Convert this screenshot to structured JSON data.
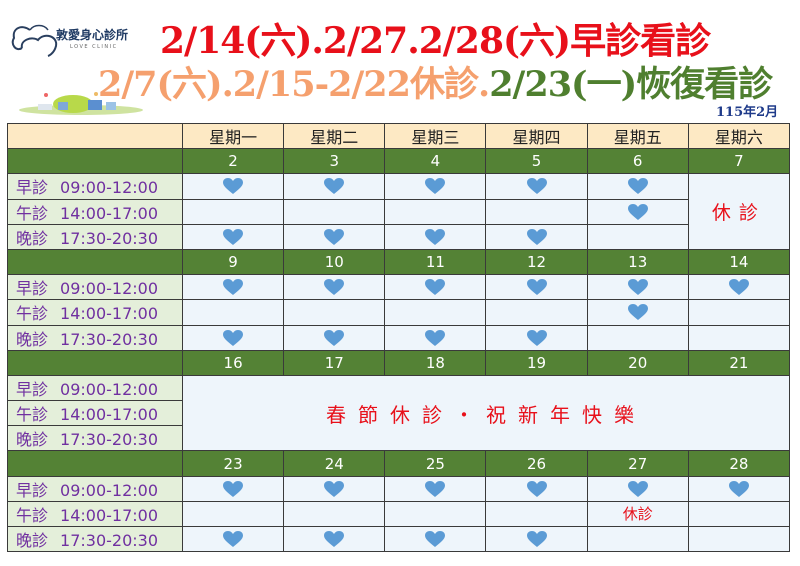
{
  "logo": {
    "name": "敦愛身心診所",
    "subtitle": "LOVE CLINIC"
  },
  "title_line1": "2/14(六).2/27.2/28(六)早診看診",
  "title_line2": {
    "closed": "2/7(六).2/15-2/22休診.",
    "resume": "2/23(一)恢復看診"
  },
  "year_month": "115年2月",
  "colors": {
    "title_red": "#e8101a",
    "title_orange": "#f5a06e",
    "title_green": "#4f7f2f",
    "week_bar": "#548235",
    "header_bg": "#fde9c4",
    "label_text": "#7030a0",
    "heart": "#5b9bd5",
    "cell_bg": "#eef5fb"
  },
  "weekdays": [
    "星期一",
    "星期二",
    "星期三",
    "星期四",
    "星期五",
    "星期六"
  ],
  "sessions": [
    {
      "name": "早診",
      "time": "09:00-12:00"
    },
    {
      "name": "午診",
      "time": "14:00-17:00"
    },
    {
      "name": "晚診",
      "time": "17:30-20:30"
    }
  ],
  "weeks": [
    {
      "dates": [
        "2",
        "3",
        "4",
        "5",
        "6",
        "7"
      ],
      "cells": [
        [
          "heart",
          "heart",
          "heart",
          "heart",
          "heart"
        ],
        [
          "",
          "",
          "",
          "",
          "heart"
        ],
        [
          "heart",
          "heart",
          "heart",
          "heart",
          ""
        ]
      ],
      "saturday_closed": "休診"
    },
    {
      "dates": [
        "9",
        "10",
        "11",
        "12",
        "13",
        "14"
      ],
      "cells": [
        [
          "heart",
          "heart",
          "heart",
          "heart",
          "heart",
          "heart"
        ],
        [
          "",
          "",
          "",
          "",
          "heart",
          ""
        ],
        [
          "heart",
          "heart",
          "heart",
          "heart",
          "",
          ""
        ]
      ]
    },
    {
      "dates": [
        "16",
        "17",
        "18",
        "19",
        "20",
        "21"
      ],
      "holiday_notice": "春節休診・祝新年快樂"
    },
    {
      "dates": [
        "23",
        "24",
        "25",
        "26",
        "27",
        "28"
      ],
      "cells": [
        [
          "heart",
          "heart",
          "heart",
          "heart",
          "heart",
          "heart"
        ],
        [
          "",
          "",
          "",
          "",
          "休診",
          ""
        ],
        [
          "heart",
          "heart",
          "heart",
          "heart",
          "",
          ""
        ]
      ]
    }
  ]
}
